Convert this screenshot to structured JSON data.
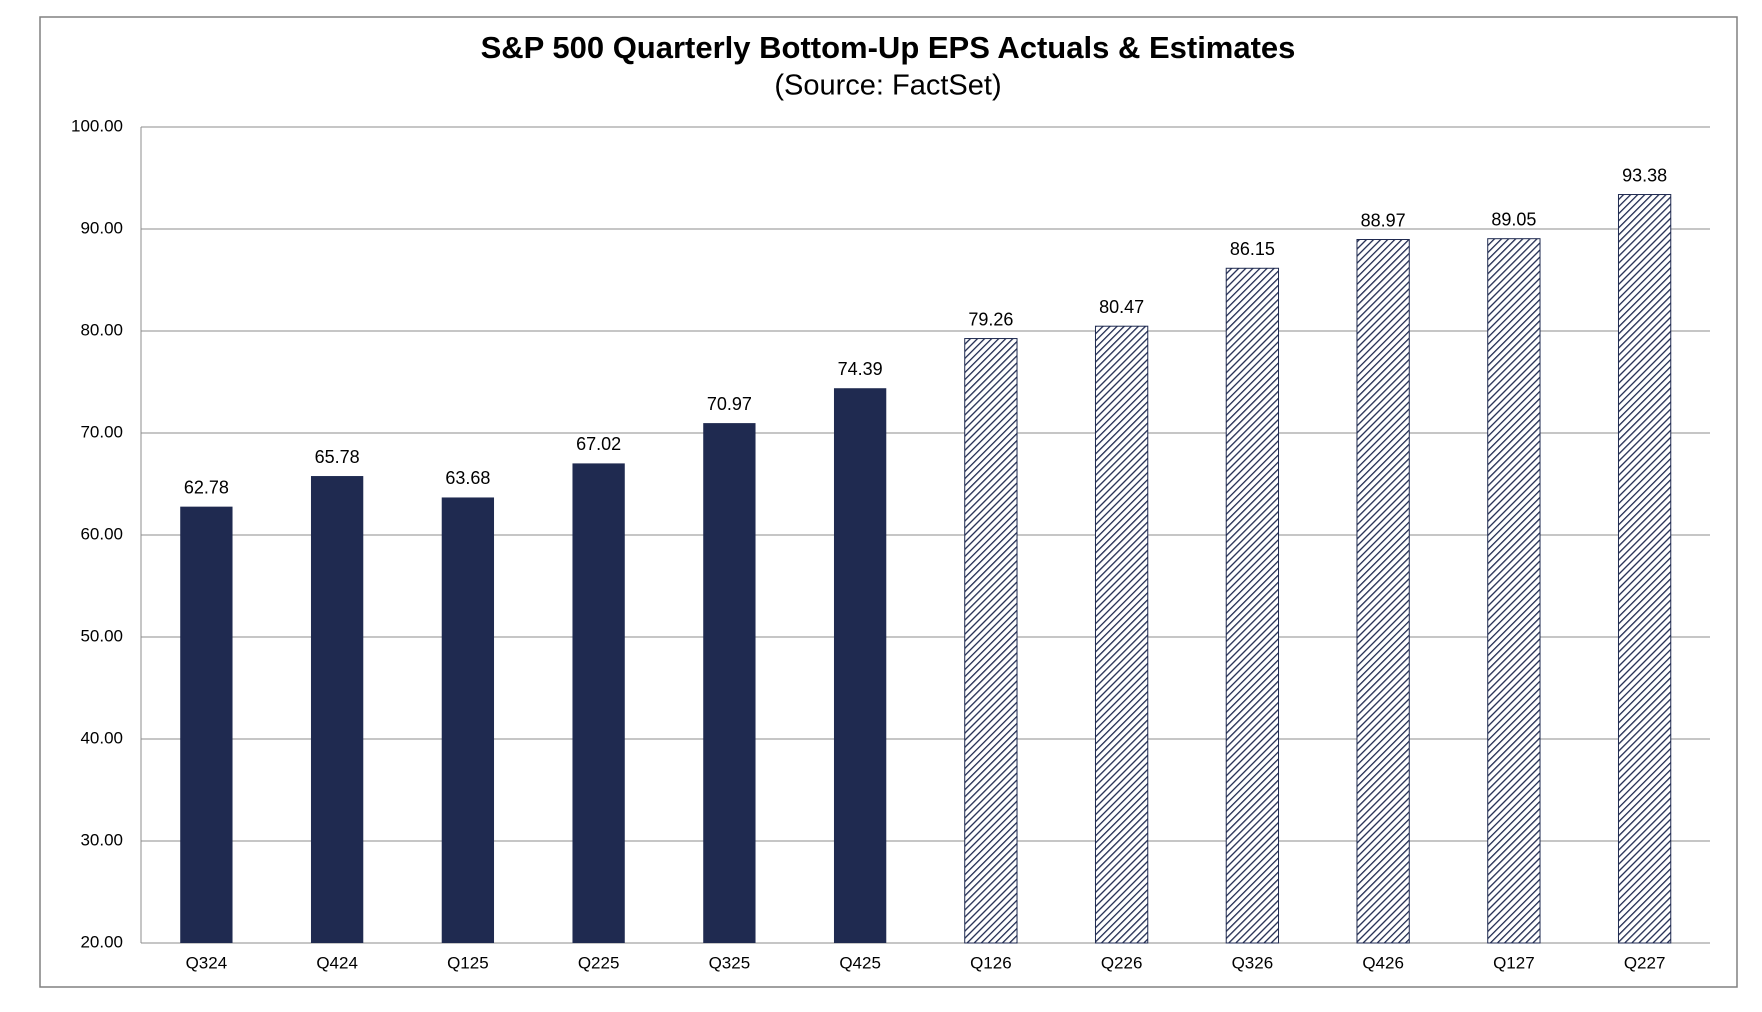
{
  "chart_data": {
    "type": "bar",
    "title": "S&P 500 Quarterly Bottom-Up EPS Actuals & Estimates",
    "subtitle": "(Source: FactSet)",
    "categories": [
      "Q324",
      "Q424",
      "Q125",
      "Q225",
      "Q325",
      "Q425",
      "Q126",
      "Q226",
      "Q326",
      "Q426",
      "Q127",
      "Q227"
    ],
    "values": [
      62.78,
      65.78,
      63.68,
      67.02,
      70.97,
      74.39,
      79.26,
      80.47,
      86.15,
      88.97,
      89.05,
      93.38
    ],
    "bar_fills": [
      "#1f2a50",
      "#1f2a50",
      "#1f2a50",
      "#1f2a50",
      "#1f2a50",
      "#1f2a50",
      "hatch",
      "hatch",
      "hatch",
      "hatch",
      "hatch",
      "hatch"
    ],
    "color": "#1f2a50",
    "ylim": [
      20,
      100
    ],
    "yticks": [
      {
        "value": 20,
        "label": "20.00"
      },
      {
        "value": 30,
        "label": "30.00"
      },
      {
        "value": 40,
        "label": "40.00"
      },
      {
        "value": 50,
        "label": "50.00"
      },
      {
        "value": 60,
        "label": "60.00"
      },
      {
        "value": 70,
        "label": "70.00"
      },
      {
        "value": 80,
        "label": "80.00"
      },
      {
        "value": 90,
        "label": "90.00"
      },
      {
        "value": 100,
        "label": "100.00"
      }
    ],
    "grid": true
  }
}
